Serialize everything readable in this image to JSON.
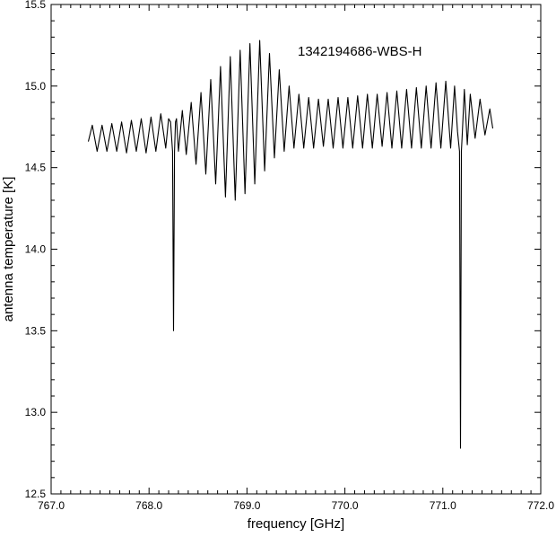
{
  "chart_data": {
    "type": "line",
    "title": "",
    "annotation": "1342194686-WBS-H",
    "xlabel": "frequency [GHz]",
    "ylabel": "antenna temperature [K]",
    "xlim": [
      767.0,
      772.0
    ],
    "ylim": [
      12.5,
      15.5
    ],
    "x_ticks": [
      767.0,
      768.0,
      769.0,
      770.0,
      771.0,
      772.0
    ],
    "x_tick_labels": [
      "767.0",
      "768.0",
      "769.0",
      "770.0",
      "771.0",
      "772.0"
    ],
    "y_ticks": [
      12.5,
      13.0,
      13.5,
      14.0,
      14.5,
      15.0,
      15.5
    ],
    "y_tick_labels": [
      "12.5",
      "13.0",
      "13.5",
      "14.0",
      "14.5",
      "15.0",
      "15.5"
    ],
    "grid": false,
    "legend": "none",
    "series": [
      {
        "color": "#000000",
        "x": [
          767.38,
          767.42,
          767.47,
          767.52,
          767.57,
          767.62,
          767.67,
          767.72,
          767.77,
          767.82,
          767.87,
          767.92,
          767.97,
          768.02,
          768.07,
          768.12,
          768.17,
          768.2,
          768.22,
          768.24,
          768.25,
          768.26,
          768.27,
          768.28,
          768.3,
          768.34,
          768.38,
          768.43,
          768.48,
          768.53,
          768.58,
          768.63,
          768.68,
          768.73,
          768.78,
          768.83,
          768.88,
          768.93,
          768.98,
          769.03,
          769.08,
          769.13,
          769.18,
          769.23,
          769.28,
          769.33,
          769.38,
          769.43,
          769.48,
          769.53,
          769.58,
          769.63,
          769.68,
          769.73,
          769.78,
          769.83,
          769.88,
          769.93,
          769.98,
          770.03,
          770.08,
          770.13,
          770.18,
          770.23,
          770.28,
          770.33,
          770.38,
          770.43,
          770.48,
          770.53,
          770.58,
          770.63,
          770.68,
          770.73,
          770.78,
          770.83,
          770.88,
          770.93,
          770.98,
          771.03,
          771.08,
          771.12,
          771.15,
          771.17,
          771.18,
          771.19,
          771.2,
          771.22,
          771.25,
          771.28,
          771.33,
          771.38,
          771.43,
          771.48,
          771.51
        ],
        "y": [
          14.66,
          14.76,
          14.6,
          14.76,
          14.6,
          14.77,
          14.6,
          14.78,
          14.59,
          14.79,
          14.6,
          14.8,
          14.59,
          14.81,
          14.6,
          14.83,
          14.62,
          14.8,
          14.78,
          14.6,
          13.5,
          14.6,
          14.78,
          14.8,
          14.6,
          14.85,
          14.58,
          14.9,
          14.52,
          14.96,
          14.46,
          15.04,
          14.4,
          15.12,
          14.32,
          15.18,
          14.3,
          15.22,
          14.34,
          15.26,
          14.4,
          15.28,
          14.48,
          15.2,
          14.56,
          15.1,
          14.6,
          15.0,
          14.62,
          14.95,
          14.62,
          14.93,
          14.62,
          14.92,
          14.63,
          14.92,
          14.62,
          14.93,
          14.62,
          14.93,
          14.62,
          14.94,
          14.62,
          14.95,
          14.62,
          14.95,
          14.63,
          14.96,
          14.62,
          14.97,
          14.62,
          14.98,
          14.62,
          14.99,
          14.62,
          15.0,
          14.62,
          15.02,
          14.62,
          15.03,
          14.62,
          15.0,
          14.72,
          14.6,
          12.78,
          14.6,
          14.72,
          14.98,
          14.64,
          14.95,
          14.68,
          14.92,
          14.7,
          14.86,
          14.74
        ]
      }
    ]
  }
}
